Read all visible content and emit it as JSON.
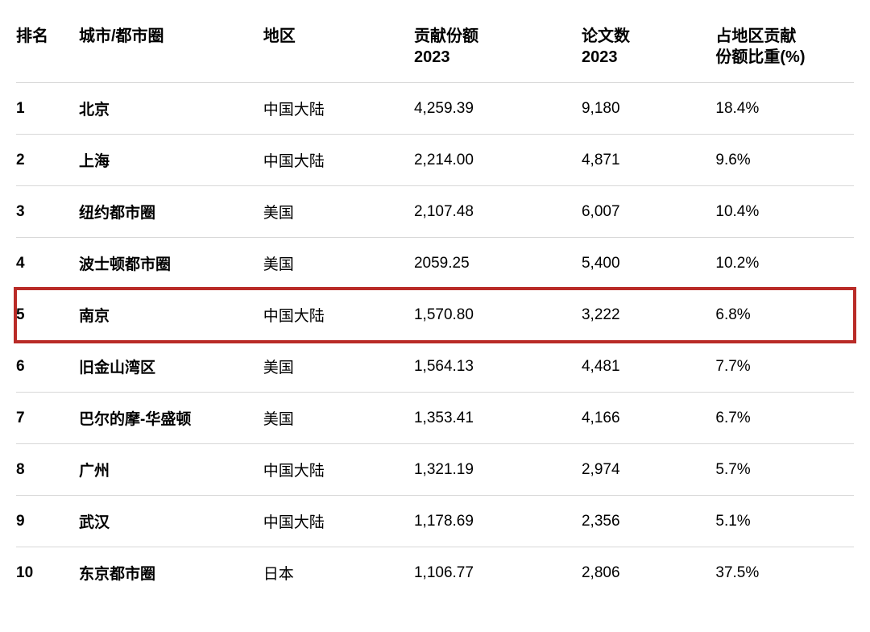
{
  "table": {
    "columns": [
      {
        "key": "rank",
        "label": "排名"
      },
      {
        "key": "city",
        "label": "城市/都市圈"
      },
      {
        "key": "region",
        "label": "地区"
      },
      {
        "key": "share",
        "label": "贡献份额\n2023"
      },
      {
        "key": "papers",
        "label": "论文数\n2023"
      },
      {
        "key": "pct",
        "label": "占地区贡献\n份额比重(%)"
      }
    ],
    "highlight_row_index": 4,
    "highlight_color": "#b92b27",
    "border_color": "#d8d8d8",
    "header_fontsize": 20,
    "header_fontweight": 700,
    "cell_fontsize": 19,
    "bold_columns": [
      "rank",
      "city"
    ],
    "rows": [
      {
        "rank": "1",
        "city": "北京",
        "region": "中国大陆",
        "share": "4,259.39",
        "papers": "9,180",
        "pct": "18.4%"
      },
      {
        "rank": "2",
        "city": "上海",
        "region": "中国大陆",
        "share": "2,214.00",
        "papers": "4,871",
        "pct": "9.6%"
      },
      {
        "rank": "3",
        "city": "纽约都市圈",
        "region": "美国",
        "share": "2,107.48",
        "papers": "6,007",
        "pct": "10.4%"
      },
      {
        "rank": "4",
        "city": "波士顿都市圈",
        "region": "美国",
        "share": "2059.25",
        "papers": "5,400",
        "pct": "10.2%"
      },
      {
        "rank": "5",
        "city": "南京",
        "region": "中国大陆",
        "share": "1,570.80",
        "papers": "3,222",
        "pct": "6.8%"
      },
      {
        "rank": "6",
        "city": "旧金山湾区",
        "region": "美国",
        "share": "1,564.13",
        "papers": "4,481",
        "pct": "7.7%"
      },
      {
        "rank": "7",
        "city": "巴尔的摩-华盛顿",
        "region": "美国",
        "share": "1,353.41",
        "papers": "4,166",
        "pct": "6.7%"
      },
      {
        "rank": "8",
        "city": "广州",
        "region": "中国大陆",
        "share": "1,321.19",
        "papers": "2,974",
        "pct": "5.7%"
      },
      {
        "rank": "9",
        "city": "武汉",
        "region": "中国大陆",
        "share": "1,178.69",
        "papers": "2,356",
        "pct": "5.1%"
      },
      {
        "rank": "10",
        "city": "东京都市圈",
        "region": "日本",
        "share": "1,106.77",
        "papers": "2,806",
        "pct": "37.5%"
      }
    ]
  }
}
